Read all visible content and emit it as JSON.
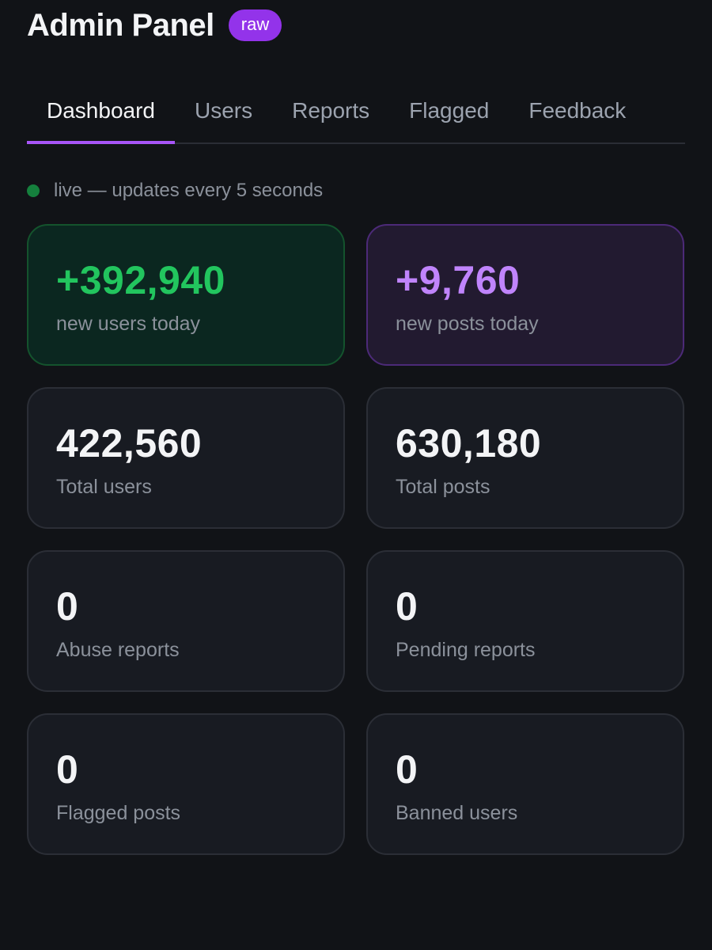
{
  "header": {
    "title": "Admin Panel",
    "badge": "raw"
  },
  "tabs": [
    {
      "label": "Dashboard",
      "active": true
    },
    {
      "label": "Users",
      "active": false
    },
    {
      "label": "Reports",
      "active": false
    },
    {
      "label": "Flagged",
      "active": false
    },
    {
      "label": "Feedback",
      "active": false
    }
  ],
  "status": {
    "text": "live — updates every 5 seconds",
    "dot_color": "#15803d"
  },
  "cards": [
    {
      "value": "+392,940",
      "label": "new users today",
      "accent": "#22c55e"
    },
    {
      "value": "+9,760",
      "label": "new posts today",
      "accent": "#c084fc"
    },
    {
      "value": "422,560",
      "label": "Total users"
    },
    {
      "value": "630,180",
      "label": "Total posts"
    },
    {
      "value": "0",
      "label": "Abuse reports"
    },
    {
      "value": "0",
      "label": "Pending reports"
    },
    {
      "value": "0",
      "label": "Flagged posts"
    },
    {
      "value": "0",
      "label": "Banned users"
    }
  ],
  "colors": {
    "background": "#111317",
    "accent": "#a855f7",
    "badge": "#9333ea"
  }
}
